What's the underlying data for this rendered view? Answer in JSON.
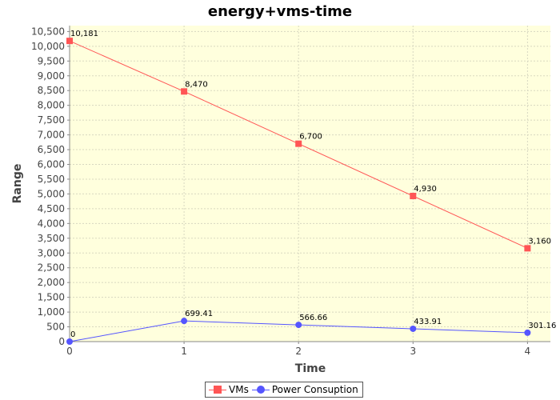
{
  "chart_data": {
    "type": "line",
    "title": "energy+vms-time",
    "xlabel": "Time",
    "ylabel": "Range",
    "x": [
      0,
      1,
      2,
      3,
      4
    ],
    "xlim": [
      0,
      4.2
    ],
    "ylim": [
      0,
      10700
    ],
    "xticks": [
      0,
      1,
      2,
      3,
      4
    ],
    "yticks": [
      0,
      500,
      1000,
      1500,
      2000,
      2500,
      3000,
      3500,
      4000,
      4500,
      5000,
      5500,
      6000,
      6500,
      7000,
      7500,
      8000,
      8500,
      9000,
      9500,
      10000,
      10500
    ],
    "grid": true,
    "legend_position": "bottom",
    "plot_background": "#ffffdd",
    "series": [
      {
        "name": "VMs",
        "color": "#ff5555",
        "marker": "square",
        "values": [
          10181,
          8470,
          6700,
          4930,
          3160
        ],
        "labels": [
          "10,181",
          "8,470",
          "6,700",
          "4,930",
          "3,160"
        ]
      },
      {
        "name": "Power Consuption",
        "color": "#5555ff",
        "marker": "circle",
        "values": [
          0,
          699.41,
          566.66,
          433.91,
          301.16
        ],
        "labels": [
          "0",
          "699.41",
          "566.66",
          "433.91",
          "301.16"
        ]
      }
    ]
  }
}
